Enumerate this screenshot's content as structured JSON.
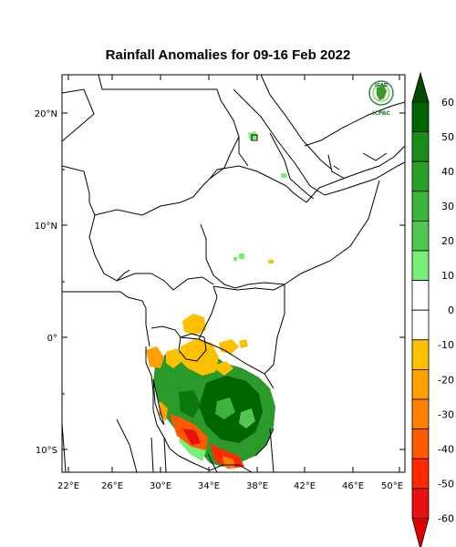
{
  "map": {
    "title": "Rainfall Anomalies for 09-16 Feb 2022",
    "logo": {
      "top_text": "IGAD",
      "bottom_text": "ICPAC"
    },
    "lat_labels": [
      "20°N",
      "10°N",
      "0°",
      "10°S"
    ],
    "lon_labels": [
      "22°E",
      "26°E",
      "30°E",
      "34°E",
      "38°E",
      "42°E",
      "46°E",
      "50°E"
    ],
    "legend": {
      "tick_labels": [
        "60",
        "50",
        "40",
        "30",
        "20",
        "10",
        "0",
        "-10",
        "-20",
        "-30",
        "-40",
        "-50",
        "-60"
      ],
      "colors": [
        "#006400",
        "#1a8c1a",
        "#2aa02a",
        "#3cb43c",
        "#50c850",
        "#78f078",
        "#ffffff",
        "#ffffff",
        "#ffc000",
        "#ffa000",
        "#ff8000",
        "#ff5a00",
        "#ff2a00",
        "#e81010"
      ],
      "top_arrow_color": "#004d00",
      "bottom_arrow_color": "#e00000"
    }
  }
}
